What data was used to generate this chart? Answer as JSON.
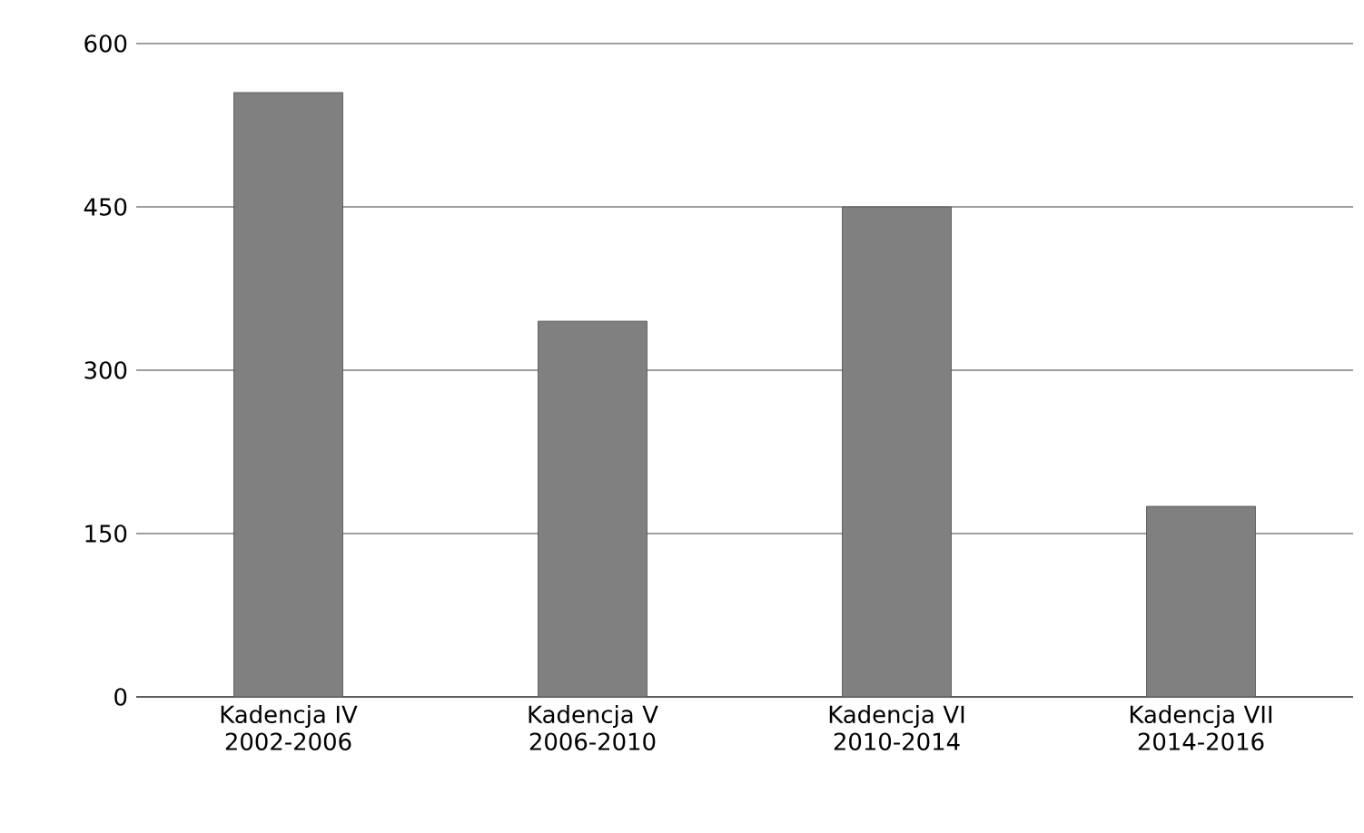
{
  "chart_data": {
    "type": "bar",
    "categories": [
      "Kadencja IV 2002-2006",
      "Kadencja V 2006-2010",
      "Kadencja VI 2010-2014",
      "Kadencja VII 2014-2016"
    ],
    "values": [
      555,
      345,
      450,
      175
    ],
    "color": "#808080",
    "ylim": [
      0,
      600
    ],
    "yticks": [
      0,
      150,
      300,
      450,
      600
    ],
    "grid": "y"
  }
}
